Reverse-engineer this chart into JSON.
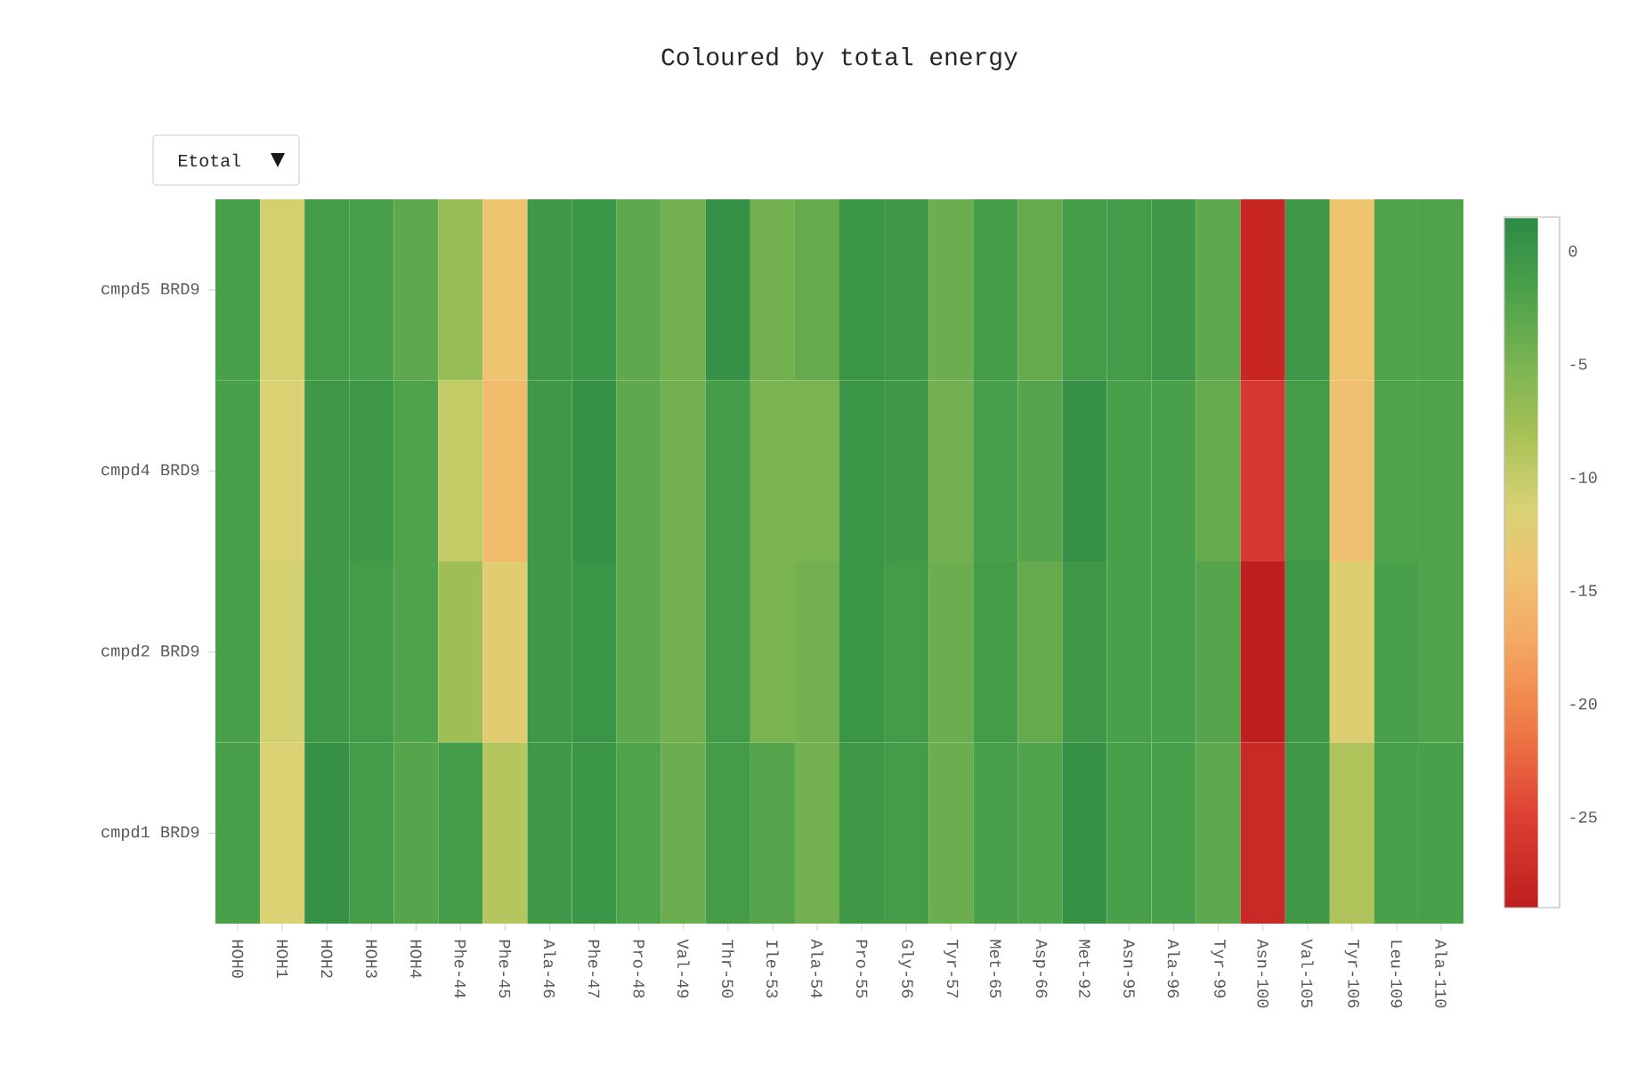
{
  "chart_data": {
    "type": "heatmap",
    "title": "Coloured by total energy",
    "annotations": [
      "Etotal"
    ],
    "categories": [
      "HOH0",
      "HOH1",
      "HOH2",
      "HOH3",
      "HOH4",
      "Phe-44",
      "Phe-45",
      "Ala-46",
      "Phe-47",
      "Pro-48",
      "Val-49",
      "Thr-50",
      "Ile-53",
      "Ala-54",
      "Pro-55",
      "Gly-56",
      "Tyr-57",
      "Met-65",
      "Asp-66",
      "Met-92",
      "Asn-95",
      "Ala-96",
      "Tyr-99",
      "Asn-100",
      "Val-105",
      "Tyr-106",
      "Leu-109",
      "Ala-110"
    ],
    "y_categories": [
      "cmpd5 BRD9",
      "cmpd4 BRD9",
      "cmpd2 BRD9",
      "cmpd1 BRD9"
    ],
    "cells": [
      [
        -1.5,
        -11,
        -1,
        -1.5,
        -3,
        -7,
        -14,
        -0.5,
        0,
        -3,
        -4.5,
        0.5,
        -4.5,
        -3.5,
        0,
        -0.5,
        -4,
        -1,
        -3.5,
        -1,
        -1,
        -0.5,
        -3,
        -28,
        -0.5,
        -14,
        -2,
        -2
      ],
      [
        -1.5,
        -11.5,
        -0.5,
        -0.5,
        -2,
        -10,
        -15,
        -0.5,
        0.5,
        -3,
        -4.5,
        -1,
        -5,
        -5,
        0,
        -0.5,
        -4.5,
        -1.5,
        -2.5,
        0.5,
        -1.5,
        -1.5,
        -3.5,
        -26,
        -1,
        -14.5,
        -2,
        -2
      ],
      [
        -1.5,
        -11,
        -0.5,
        -1,
        -2,
        -7.5,
        -12.5,
        -0.5,
        0,
        -3,
        -4.5,
        -1,
        -5,
        -4.5,
        0,
        -1,
        -4,
        -1,
        -3.5,
        -0.5,
        -1.5,
        -1.5,
        -2.5,
        -29,
        -0.5,
        -12,
        -1.5,
        -2
      ],
      [
        -1.5,
        -11.5,
        0.5,
        -1,
        -2.5,
        -1,
        -9,
        -0.5,
        0,
        -2,
        -4,
        -1,
        -2.5,
        -4.5,
        -0.5,
        -1,
        -4,
        -1.5,
        -2,
        0.5,
        -1.5,
        -1.5,
        -3,
        -27.5,
        -0.5,
        -8.5,
        -1.5,
        -1.5
      ]
    ],
    "clim": [
      -29,
      1.5
    ],
    "cticks": [
      0,
      -5,
      -10,
      -15,
      -20,
      -25
    ]
  }
}
